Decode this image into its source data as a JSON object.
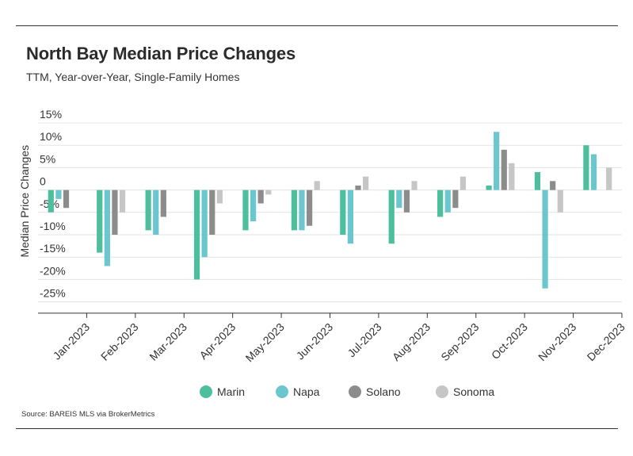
{
  "header": {
    "title": "North Bay Median Price Changes",
    "subtitle": "TTM, Year-over-Year, Single-Family Homes"
  },
  "footer": {
    "source": "Source:  BAREIS MLS via BrokerMetrics"
  },
  "chart_data": {
    "type": "bar",
    "title": "North Bay Median Price Changes",
    "subtitle": "TTM, Year-over-Year, Single-Family Homes",
    "xlabel": "",
    "ylabel": "Median Price Changes",
    "ylim": [
      -27,
      15
    ],
    "yticks": [
      {
        "value": 15,
        "label": "15%"
      },
      {
        "value": 10,
        "label": "10%"
      },
      {
        "value": 5,
        "label": "5%"
      },
      {
        "value": 0,
        "label": "0"
      },
      {
        "value": -5,
        "label": "-5%"
      },
      {
        "value": -10,
        "label": "-10%"
      },
      {
        "value": -15,
        "label": "-15%"
      },
      {
        "value": -20,
        "label": "-20%"
      },
      {
        "value": -25,
        "label": "-25%"
      }
    ],
    "categories": [
      "Jan-2023",
      "Feb-2023",
      "Mar-2023",
      "Apr-2023",
      "May-2023",
      "Jun-2023",
      "Jul-2023",
      "Aug-2023",
      "Sep-2023",
      "Oct-2023",
      "Nov-2023",
      "Dec-2023"
    ],
    "series": [
      {
        "name": "Marin",
        "color": "#4dbf9f",
        "values": [
          -5,
          -14,
          -9,
          -20,
          -9,
          -9,
          -10,
          -12,
          -6,
          1,
          4,
          10
        ]
      },
      {
        "name": "Napa",
        "color": "#6cc6ce",
        "values": [
          -2,
          -17,
          -10,
          -15,
          -7,
          -9,
          -12,
          -4,
          -5,
          13,
          -22,
          8
        ]
      },
      {
        "name": "Solano",
        "color": "#8c8c8c",
        "values": [
          -4,
          -10,
          -6,
          -10,
          -3,
          -8,
          1,
          -5,
          -4,
          9,
          2,
          0
        ]
      },
      {
        "name": "Sonoma",
        "color": "#c6c6c6",
        "values": [
          0,
          -5,
          0,
          -3,
          -1,
          2,
          3,
          2,
          3,
          6,
          -5,
          5
        ]
      }
    ],
    "grid": true,
    "legend": "bottom"
  }
}
